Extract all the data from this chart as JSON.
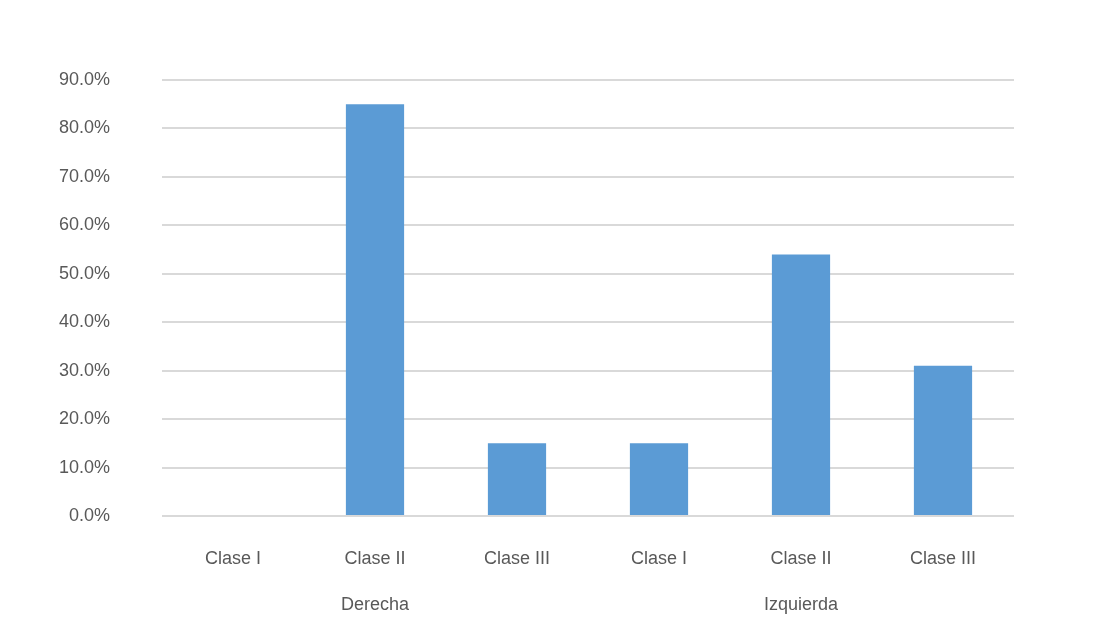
{
  "chart_data": {
    "type": "bar",
    "categories": [
      "Clase I",
      "Clase II",
      "Clase III",
      "Clase I",
      "Clase II",
      "Clase III"
    ],
    "values": [
      0,
      85,
      15,
      15,
      54,
      31
    ],
    "color": "#5b9bd5",
    "ylim": [
      0,
      90
    ],
    "yticks": [
      {
        "value": 0,
        "label": "0.0%"
      },
      {
        "value": 10,
        "label": "10.0%"
      },
      {
        "value": 20,
        "label": "20.0%"
      },
      {
        "value": 30,
        "label": "30.0%"
      },
      {
        "value": 40,
        "label": "40.0%"
      },
      {
        "value": 50,
        "label": "50.0%"
      },
      {
        "value": 60,
        "label": "60.0%"
      },
      {
        "value": 70,
        "label": "70.0%"
      },
      {
        "value": 80,
        "label": "80.0%"
      },
      {
        "value": 90,
        "label": "90.0%"
      }
    ],
    "grid": "y",
    "annotations": [
      "Derecha",
      "Izquierda"
    ]
  }
}
